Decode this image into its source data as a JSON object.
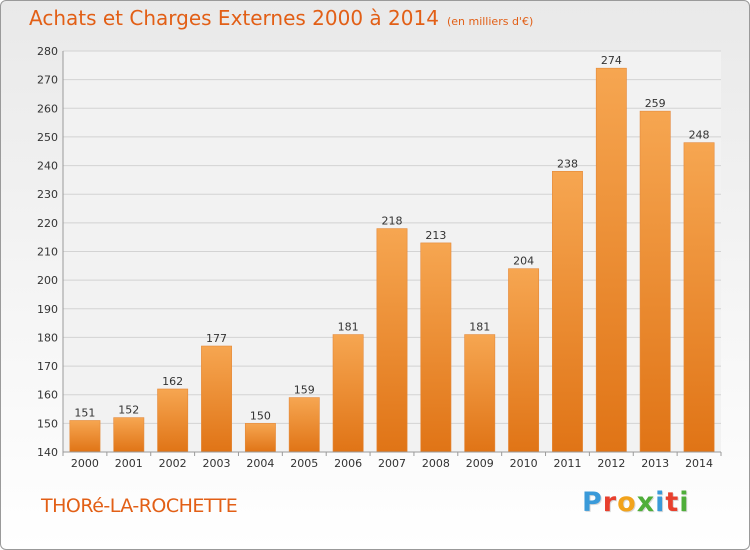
{
  "title": "Achats et Charges Externes 2000 à 2014",
  "units": "(en milliers d'€)",
  "commune": "THORé-LA-ROCHETTE",
  "logo": {
    "letters": [
      "P",
      "r",
      "o",
      "x",
      "i",
      "t",
      "i"
    ],
    "colors": [
      "#3a9ad9",
      "#e8402e",
      "#f2a31b",
      "#4fae3a",
      "#3a9ad9",
      "#e8402e",
      "#4fae3a"
    ]
  },
  "colors": {
    "bar_top": "#f6a651",
    "bar_bottom": "#e07416",
    "title": "#e25f16",
    "grid": "#d3d3d3"
  },
  "chart_data": {
    "type": "bar",
    "categories": [
      "2000",
      "2001",
      "2002",
      "2003",
      "2004",
      "2005",
      "2006",
      "2007",
      "2008",
      "2009",
      "2010",
      "2011",
      "2012",
      "2013",
      "2014"
    ],
    "values": [
      151,
      152,
      162,
      177,
      150,
      159,
      181,
      218,
      213,
      181,
      204,
      238,
      274,
      259,
      248
    ],
    "ylim": [
      140,
      280
    ],
    "yticks": [
      140,
      150,
      160,
      170,
      180,
      190,
      200,
      210,
      220,
      230,
      240,
      250,
      260,
      270,
      280
    ],
    "data_labels": true,
    "grid": true
  }
}
